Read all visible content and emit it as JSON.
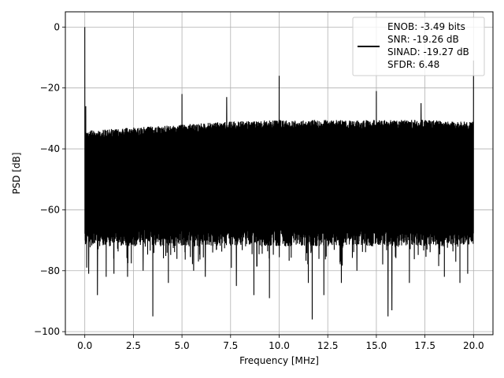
{
  "chart_data": {
    "type": "line",
    "xlabel": "Frequency [MHz]",
    "ylabel": "PSD [dB]",
    "xlim": [
      -1.0,
      21.0
    ],
    "ylim": [
      -101.0,
      5.0
    ],
    "xticks": [
      0.0,
      2.5,
      5.0,
      7.5,
      10.0,
      12.5,
      15.0,
      17.5,
      20.0
    ],
    "xtick_labels": [
      "0.0",
      "2.5",
      "5.0",
      "7.5",
      "10.0",
      "12.5",
      "15.0",
      "17.5",
      "20.0"
    ],
    "yticks": [
      0,
      -20,
      -40,
      -60,
      -80,
      -100
    ],
    "ytick_labels": [
      "0",
      "−20",
      "−40",
      "−60",
      "−80",
      "−100"
    ],
    "grid": true,
    "legend_position": "top-right",
    "series": [
      {
        "name": "ENOB: -3.49 bits\nSNR: -19.26 dB\nSINAD: -19.27 dB\nSFDR: 6.48",
        "legend_lines": [
          "ENOB: -3.49 bits",
          "SNR: -19.26 dB",
          "SINAD: -19.27 dB",
          "SFDR: 6.48"
        ],
        "color": "#000000",
        "noise_floor_top_db": [
          -32,
          -31,
          -30,
          -29,
          -28.5,
          -28.5,
          -28.5,
          -28.5,
          -29,
          -29
        ],
        "noise_floor_top_x": [
          0.1,
          2.5,
          5.0,
          7.5,
          10.0,
          12.5,
          15.0,
          17.5,
          19.5,
          20.0
        ],
        "noise_floor_bottom_db": -66,
        "peaks": [
          {
            "x": 0.0,
            "y": 0
          },
          {
            "x": 0.05,
            "y": -26
          },
          {
            "x": 5.0,
            "y": -22
          },
          {
            "x": 7.3,
            "y": -23
          },
          {
            "x": 10.0,
            "y": -16
          },
          {
            "x": 15.0,
            "y": -21
          },
          {
            "x": 17.3,
            "y": -25
          },
          {
            "x": 20.0,
            "y": -11
          }
        ],
        "dips": [
          {
            "x": 0.1,
            "y": -79
          },
          {
            "x": 0.2,
            "y": -81
          },
          {
            "x": 0.65,
            "y": -88
          },
          {
            "x": 1.1,
            "y": -82
          },
          {
            "x": 1.5,
            "y": -81
          },
          {
            "x": 2.2,
            "y": -82
          },
          {
            "x": 3.0,
            "y": -80
          },
          {
            "x": 3.5,
            "y": -95
          },
          {
            "x": 4.3,
            "y": -84
          },
          {
            "x": 5.6,
            "y": -80
          },
          {
            "x": 6.2,
            "y": -82
          },
          {
            "x": 7.8,
            "y": -85
          },
          {
            "x": 8.7,
            "y": -88
          },
          {
            "x": 9.5,
            "y": -89
          },
          {
            "x": 10.0,
            "y": -90
          },
          {
            "x": 11.5,
            "y": -84
          },
          {
            "x": 11.7,
            "y": -96
          },
          {
            "x": 12.3,
            "y": -88
          },
          {
            "x": 13.2,
            "y": -84
          },
          {
            "x": 14.0,
            "y": -80
          },
          {
            "x": 15.6,
            "y": -95
          },
          {
            "x": 15.8,
            "y": -93
          },
          {
            "x": 16.7,
            "y": -84
          },
          {
            "x": 17.3,
            "y": -87
          },
          {
            "x": 18.5,
            "y": -82
          },
          {
            "x": 19.3,
            "y": -84
          },
          {
            "x": 19.7,
            "y": -81
          }
        ]
      }
    ]
  }
}
